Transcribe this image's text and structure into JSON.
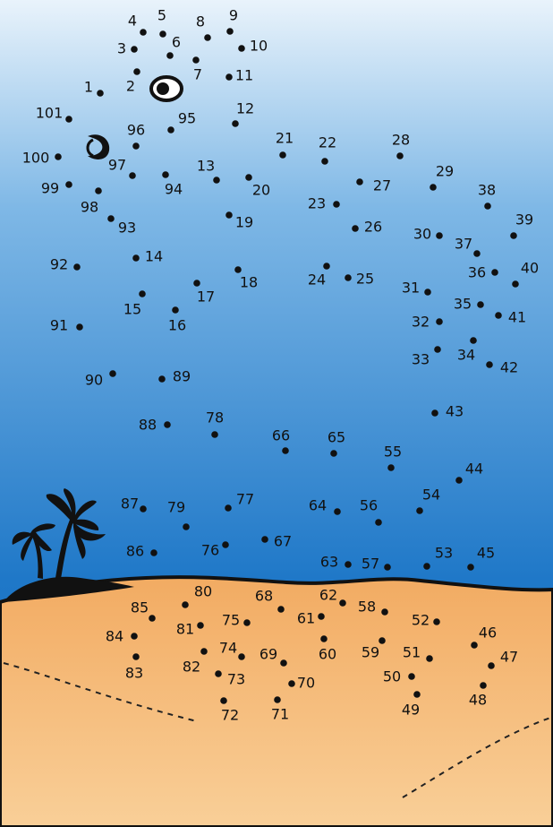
{
  "dot_numbers": [
    1,
    2,
    3,
    4,
    5,
    6,
    7,
    8,
    9,
    10,
    11,
    12,
    13,
    14,
    15,
    16,
    17,
    18,
    19,
    20,
    21,
    22,
    23,
    24,
    25,
    26,
    27,
    28,
    29,
    30,
    31,
    32,
    33,
    34,
    35,
    36,
    37,
    38,
    39,
    40,
    41,
    42,
    43,
    44,
    45,
    46,
    47,
    48,
    49,
    50,
    51,
    52,
    53,
    54,
    55,
    56,
    57,
    58,
    59,
    60,
    61,
    62,
    63,
    64,
    65,
    66,
    67,
    68,
    69,
    70,
    71,
    72,
    73,
    74,
    75,
    76,
    77,
    78,
    79,
    80,
    81,
    82,
    83,
    84,
    85,
    86,
    87,
    88,
    89,
    90,
    91,
    92,
    93,
    94,
    95,
    96,
    97,
    98,
    99,
    100,
    101
  ]
}
